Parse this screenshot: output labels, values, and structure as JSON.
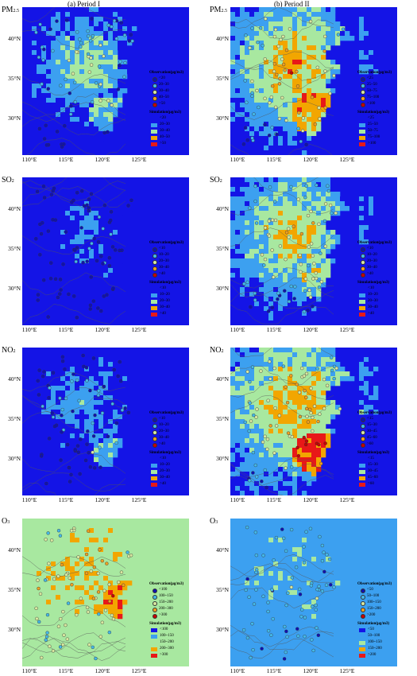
{
  "columns": [
    {
      "title": "(a) Period I"
    },
    {
      "title": "(b) Period II"
    }
  ],
  "lat_labels": [
    "40°N",
    "35°N",
    "30°N"
  ],
  "lon_labels": [
    "110°E",
    "115°E",
    "120°E",
    "125°E"
  ],
  "colors": {
    "ocean": "#1414e6",
    "c1": "#1414e6",
    "c2": "#3ca0f0",
    "c3": "#a8e8a0",
    "c4": "#f2a600",
    "c5": "#e81818"
  },
  "panels": [
    {
      "id": "pm25-1",
      "species": "PM",
      "species_sub": "2.5",
      "obs_title": "Observation(μg/m3)",
      "obs": [
        "<20",
        "20~30",
        "30~40",
        "40~50",
        ">50"
      ],
      "sim_title": "Simulation(μg/m3)",
      "sim": [
        "<20",
        "20~30",
        "30~40",
        "40~50",
        ">50"
      ]
    },
    {
      "id": "pm25-2",
      "species": "PM",
      "species_sub": "2.5",
      "obs_title": "Observation(μg/m3)",
      "obs": [
        "<25",
        "25~50",
        "50~75",
        "75~100",
        ">100"
      ],
      "sim_title": "Simulation(μg/m3)",
      "sim": [
        "<25",
        "25~50",
        "50~75",
        "75~100",
        ">100"
      ]
    },
    {
      "id": "so2-1",
      "species": "SO",
      "species_sub": "2",
      "obs_title": "Observation(μg/m3)",
      "obs": [
        "<10",
        "10~20",
        "20~30",
        "30~40",
        ">40"
      ],
      "sim_title": "Simulation(μg/m3)",
      "sim": [
        "<10",
        "10~20",
        "20~30",
        "30~40",
        ">40"
      ]
    },
    {
      "id": "so2-2",
      "species": "SO",
      "species_sub": "2",
      "obs_title": "Observation(μg/m3)",
      "obs": [
        "<10",
        "10~20",
        "20~30",
        "30~40",
        ">40"
      ],
      "sim_title": "Simulation(μg/m3)",
      "sim": [
        "<10",
        "10~20",
        "20~30",
        "30~40",
        ">40"
      ]
    },
    {
      "id": "no2-1",
      "species": "NO",
      "species_sub": "2",
      "obs_title": "Observation(μg/m3)",
      "obs": [
        "<10",
        "10~20",
        "20~30",
        "30~40",
        ">40"
      ],
      "sim_title": "Simulation(μg/m3)",
      "sim": [
        "<10",
        "10~20",
        "20~30",
        "30~40",
        ">40"
      ]
    },
    {
      "id": "no2-2",
      "species": "NO",
      "species_sub": "2",
      "obs_title": "Observation(μg/m3)",
      "obs": [
        "<15",
        "15~30",
        "30~45",
        "45~60",
        ">60"
      ],
      "sim_title": "Simulation(μg/m3)",
      "sim": [
        "<15",
        "15~30",
        "30~45",
        "45~60",
        ">60"
      ]
    },
    {
      "id": "o3-1",
      "species": "O",
      "species_sub": "3",
      "obs_title": "Observation(μg/m3)",
      "obs": [
        "<100",
        "100~150",
        "150~200",
        "200~300",
        ">300"
      ],
      "sim_title": "Simulation(μg/m3)",
      "sim": [
        "<100",
        "100~150",
        "150~200",
        "200~300",
        ">300"
      ]
    },
    {
      "id": "o3-2",
      "species": "O",
      "species_sub": "3",
      "obs_title": "Observation(μg/m3)",
      "obs": [
        "<50",
        "50~100",
        "100~150",
        "150~200",
        ">200"
      ],
      "sim_title": "Simulation(μg/m3)",
      "sim": [
        "<50",
        "50~100",
        "100~150",
        "150~200",
        ">200"
      ]
    }
  ]
}
